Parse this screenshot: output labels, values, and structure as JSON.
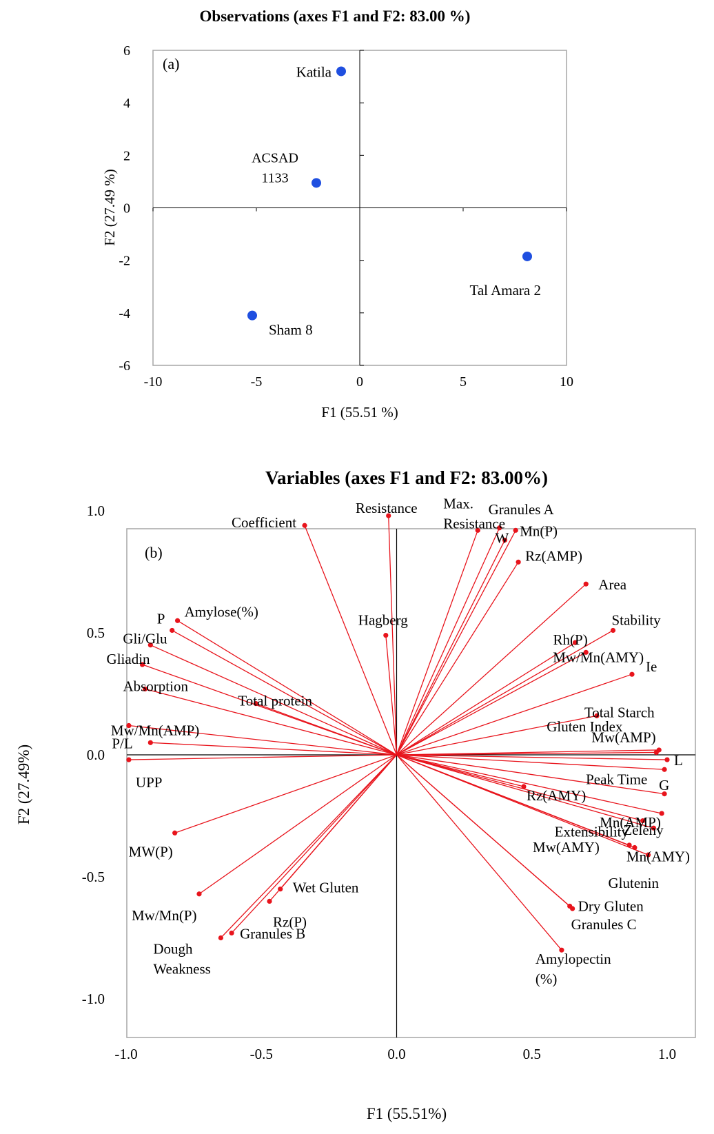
{
  "colors": {
    "marker_a": "#1f4fe0",
    "marker_b": "#e8141c",
    "frame": "#a6a6a6",
    "axis": "#000000",
    "text": "#000000"
  },
  "chart_data": [
    {
      "type": "scatter",
      "panel_label": "(a)",
      "title": "Observations (axes F1 and F2: 83.00 %)",
      "xlabel": "F1 (55.51 %)",
      "ylabel": "F2 (27.49 %)",
      "xlim": [
        -10,
        10
      ],
      "ylim": [
        -6,
        6
      ],
      "xticks": [
        "-10",
        "-5",
        "0",
        "5",
        "10"
      ],
      "yticks": [
        "6",
        "4",
        "2",
        "0",
        "-2",
        "-4",
        "-6"
      ],
      "grid": false,
      "points": [
        {
          "label": "Katila",
          "x": -0.9,
          "y": 5.2
        },
        {
          "label": "ACSAD 1133",
          "x": -2.1,
          "y": 0.95
        },
        {
          "label": "Tal Amara 2",
          "x": 8.1,
          "y": -1.85
        },
        {
          "label": "Sham 8",
          "x": -5.2,
          "y": -4.1
        }
      ]
    },
    {
      "type": "scatter",
      "panel_label": "(b)",
      "title": "Variables (axes F1 and F2: 83.00%)",
      "xlabel": "F1 (55.51%)",
      "ylabel": "F2 (27.49%)",
      "xlim": [
        -1.0,
        1.0
      ],
      "ylim": [
        -1.0,
        1.0
      ],
      "xticks": [
        "-1.0",
        "-0.5",
        "0.0",
        "0.5",
        "1.0"
      ],
      "yticks": [
        "1.0",
        "0.5",
        "0.0",
        "-0.5",
        "-1.0"
      ],
      "grid": false,
      "vectors": true,
      "points": [
        {
          "label": "Coefficient",
          "x": -0.34,
          "y": 0.94
        },
        {
          "label": "Resistance",
          "x": -0.03,
          "y": 0.98
        },
        {
          "label": "Max. Resistance",
          "x": 0.3,
          "y": 0.92
        },
        {
          "label": "Granules A",
          "x": 0.38,
          "y": 0.93
        },
        {
          "label": "Mn(P)",
          "x": 0.44,
          "y": 0.92
        },
        {
          "label": "W",
          "x": 0.4,
          "y": 0.88
        },
        {
          "label": "Rz(AMP)",
          "x": 0.45,
          "y": 0.79
        },
        {
          "label": "Area",
          "x": 0.7,
          "y": 0.7
        },
        {
          "label": "Hagberg",
          "x": -0.04,
          "y": 0.49
        },
        {
          "label": "Stability",
          "x": 0.8,
          "y": 0.51
        },
        {
          "label": "Rh(P)",
          "x": 0.66,
          "y": 0.46
        },
        {
          "label": "Mw/Mn(AMY)",
          "x": 0.7,
          "y": 0.42
        },
        {
          "label": "Ie",
          "x": 0.87,
          "y": 0.33
        },
        {
          "label": "Amylose(%)",
          "x": -0.81,
          "y": 0.55
        },
        {
          "label": "P",
          "x": -0.83,
          "y": 0.51
        },
        {
          "label": "Gli/Glu",
          "x": -0.91,
          "y": 0.45
        },
        {
          "label": "Gliadin",
          "x": -0.94,
          "y": 0.37
        },
        {
          "label": "Absorption",
          "x": -0.93,
          "y": 0.27
        },
        {
          "label": "Total protein",
          "x": -0.52,
          "y": 0.21
        },
        {
          "label": "Total Starch",
          "x": 0.74,
          "y": 0.16
        },
        {
          "label": "Mw/Mn(AMP)",
          "x": -0.99,
          "y": 0.12
        },
        {
          "label": "P/L",
          "x": -0.91,
          "y": 0.05
        },
        {
          "label": "UPP",
          "x": -0.99,
          "y": -0.02
        },
        {
          "label": "Gluten Index",
          "x": 0.97,
          "y": 0.02
        },
        {
          "label": "Mw(AMP)",
          "x": 0.96,
          "y": 0.01
        },
        {
          "label": "L",
          "x": 1.0,
          "y": -0.02
        },
        {
          "label": "G",
          "x": 0.99,
          "y": -0.06
        },
        {
          "label": "Peak Time",
          "x": 0.99,
          "y": -0.16
        },
        {
          "label": "Rz(AMY)",
          "x": 0.47,
          "y": -0.13
        },
        {
          "label": "Mn(AMP)",
          "x": 0.98,
          "y": -0.24
        },
        {
          "label": "Zeleny",
          "x": 0.95,
          "y": -0.3
        },
        {
          "label": "Extensibility",
          "x": 0.91,
          "y": -0.27
        },
        {
          "label": "Mw(AMY)",
          "x": 0.86,
          "y": -0.37
        },
        {
          "label": "Mn(AMY)",
          "x": 0.88,
          "y": -0.38
        },
        {
          "label": "Glutenin",
          "x": 0.93,
          "y": -0.41
        },
        {
          "label": "Dry Gluten",
          "x": 0.64,
          "y": -0.62
        },
        {
          "label": "Granules C",
          "x": 0.65,
          "y": -0.63
        },
        {
          "label": "Amylopectin (%)",
          "x": 0.61,
          "y": -0.8
        },
        {
          "label": "MW(P)",
          "x": -0.82,
          "y": -0.32
        },
        {
          "label": "Mw/Mn(P)",
          "x": -0.73,
          "y": -0.57
        },
        {
          "label": "Wet Gluten",
          "x": -0.43,
          "y": -0.55
        },
        {
          "label": "Rz(P)",
          "x": -0.47,
          "y": -0.6
        },
        {
          "label": "Granules B",
          "x": -0.61,
          "y": -0.73
        },
        {
          "label": "Dough Weakness",
          "x": -0.65,
          "y": -0.75
        }
      ]
    }
  ]
}
